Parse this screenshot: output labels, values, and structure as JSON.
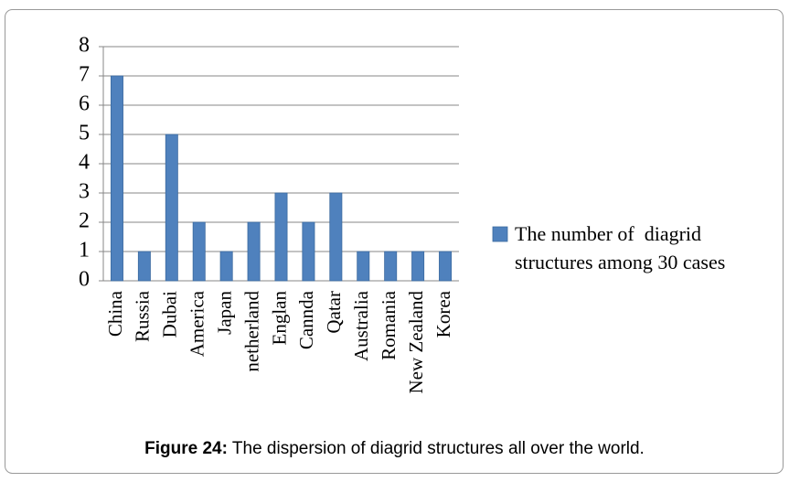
{
  "chart_data": {
    "type": "bar",
    "caption": {
      "label": "Figure 24:",
      "text": "The dispersion of diagrid structures all over the world."
    },
    "categories": [
      "China",
      "Russia",
      "Dubai",
      "America",
      "Japan",
      "netherland",
      "Englan",
      "Cannda",
      "Qatar",
      "Australia",
      "Romania",
      "New Zealand",
      "Korea"
    ],
    "series": [
      {
        "name": "The number of  diagrid structures among 30 cases",
        "color": "#4f81bd",
        "values": [
          7,
          1,
          5,
          2,
          1,
          2,
          3,
          2,
          3,
          1,
          1,
          1,
          1
        ]
      }
    ],
    "ylim": [
      0,
      8
    ],
    "yticks": [
      0,
      1,
      2,
      3,
      4,
      5,
      6,
      7,
      8
    ],
    "grid": true,
    "legend": "right"
  }
}
